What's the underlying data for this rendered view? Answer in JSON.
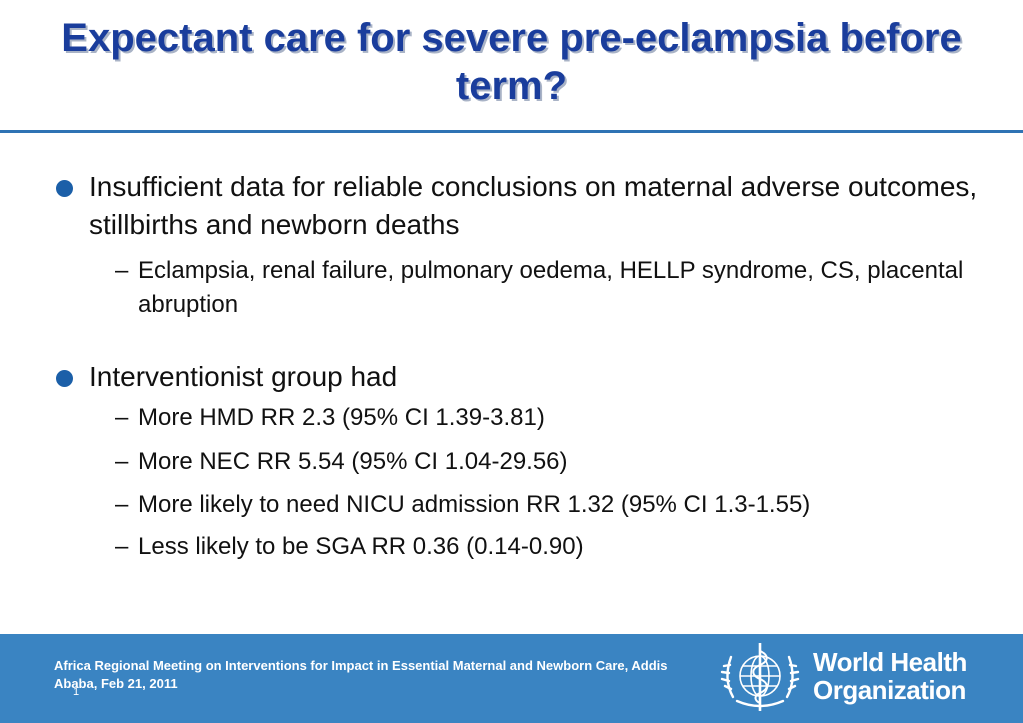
{
  "slide": {
    "title": "Expectant care for severe pre-eclampsia before term?",
    "bullets": [
      {
        "text": "Insufficient data for reliable conclusions on maternal adverse outcomes, stillbirths and newborn deaths",
        "subs": [
          "Eclampsia, renal failure, pulmonary oedema, HELLP syndrome, CS, placental abruption"
        ]
      },
      {
        "text": "Interventionist group had",
        "subs": [
          "More HMD RR 2.3 (95% CI 1.39-3.81)",
          "More NEC RR 5.54 (95% CI 1.04-29.56)",
          "More likely to need NICU admission RR 1.32 (95% CI 1.3-1.55)",
          "Less likely to be SGA RR 0.36 (0.14-0.90)"
        ]
      }
    ],
    "sub_marker": "–"
  },
  "footer": {
    "meeting": "Africa Regional Meeting on Interventions for Impact in Essential Maternal and Newborn Care, Addis Ababa, Feb 21, 2011",
    "page_number": "1",
    "logo_line1": "World Health",
    "logo_line2": "Organization"
  },
  "colors": {
    "title": "#1a3d9c",
    "rule": "#2f73b4",
    "bullet_dot": "#1b5fa8",
    "footer_bg": "#3a84c2"
  },
  "icons": {
    "bullet": "filled-circle",
    "logo": "who-emblem-icon"
  }
}
